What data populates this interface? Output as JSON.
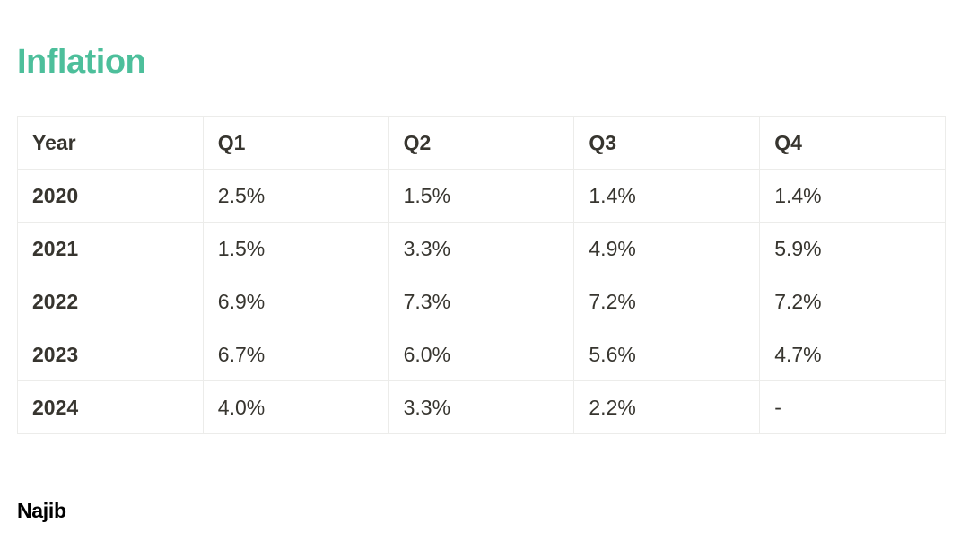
{
  "title": "Inflation",
  "table": {
    "headers": [
      "Year",
      "Q1",
      "Q2",
      "Q3",
      "Q4"
    ],
    "rows": [
      {
        "year": "2020",
        "values": [
          "2.5%",
          "1.5%",
          "1.4%",
          "1.4%"
        ]
      },
      {
        "year": "2021",
        "values": [
          "1.5%",
          "3.3%",
          "4.9%",
          "5.9%"
        ]
      },
      {
        "year": "2022",
        "values": [
          "6.9%",
          "7.3%",
          "7.2%",
          "7.2%"
        ]
      },
      {
        "year": "2023",
        "values": [
          "6.7%",
          "6.0%",
          "5.6%",
          "4.7%"
        ]
      },
      {
        "year": "2024",
        "values": [
          "4.0%",
          "3.3%",
          "2.2%",
          "-"
        ]
      }
    ]
  },
  "author": "Najib",
  "colors": {
    "title": "#4dbf9b",
    "text": "#37352f",
    "border": "#ececea"
  }
}
